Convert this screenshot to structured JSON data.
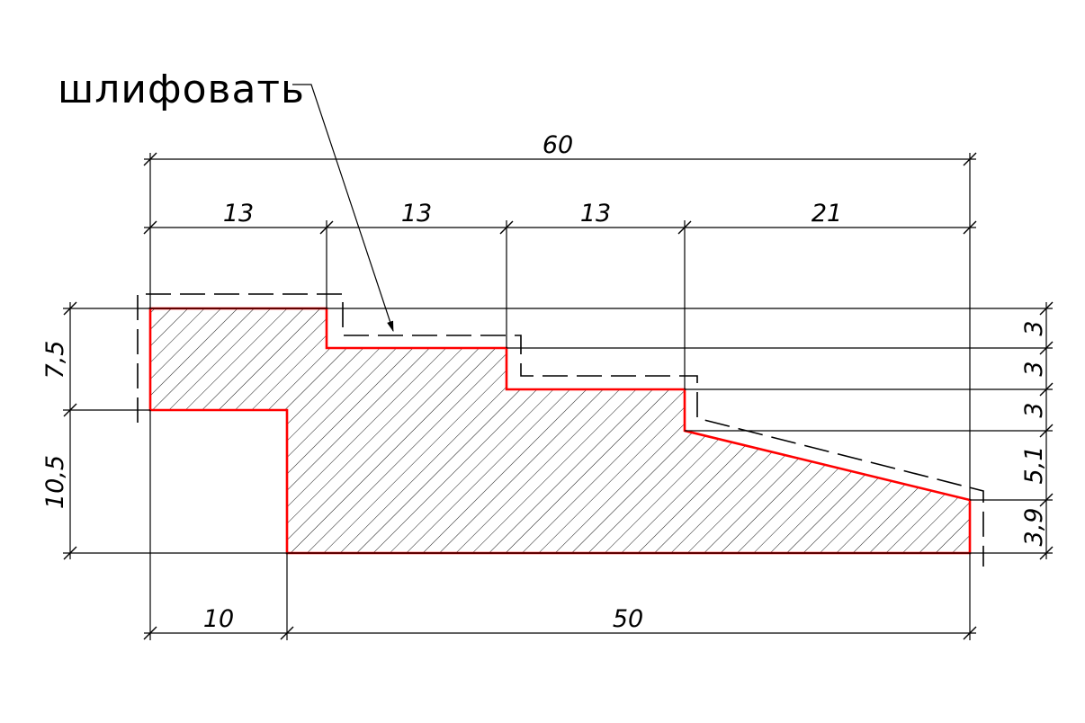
{
  "drawing": {
    "note": "шлифовать",
    "dims": {
      "overall_length": "60",
      "step_1": "13",
      "step_2": "13",
      "step_3": "13",
      "step_4": "21",
      "base_left": "10",
      "base_right": "50",
      "height_top": "7,5",
      "height_bottom": "10,5",
      "right_1": "3",
      "right_2": "3",
      "right_3": "3",
      "right_4": "5,1",
      "right_5": "3,9"
    },
    "colors": {
      "outline": "#ff0000",
      "lines": "#000000"
    }
  }
}
